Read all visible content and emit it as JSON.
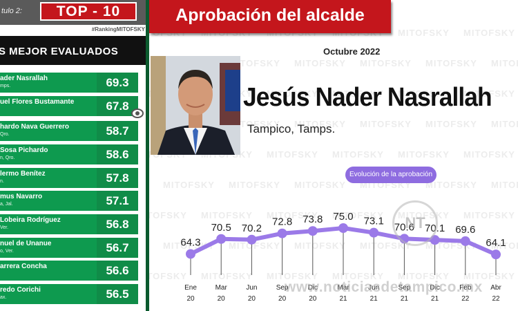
{
  "left_panel": {
    "caption": "tulo 2:",
    "top_title": "TOP - 10",
    "hashtag": "#RankingMITOFSKY",
    "subtitle": "S MEJOR EVALUADOS",
    "rankings": [
      {
        "name": "ader Nasrallah",
        "place": "mps.",
        "score": "69.3"
      },
      {
        "name": "uel Flores Bustamante",
        "place": "",
        "score": "67.8"
      },
      {
        "name": "hardo Nava Guerrero",
        "place": "Qro.",
        "score": "58.7"
      },
      {
        "name": "Sosa Pichardo",
        "place": "n, Qro.",
        "score": "58.6"
      },
      {
        "name": "lermo Benítez",
        "place": "n.",
        "score": "57.8"
      },
      {
        "name": "mus Navarro",
        "place": "a, Jal.",
        "score": "57.1"
      },
      {
        "name": "Lobeira Rodríguez",
        "place": "Ver.",
        "score": "56.8"
      },
      {
        "name": "nuel de Unanue",
        "place": "o, Ver.",
        "score": "56.7"
      },
      {
        "name": "arrera Concha",
        "place": "",
        "score": "56.6"
      },
      {
        "name": "redo Corichi",
        "place": "ax.",
        "score": "56.5"
      }
    ]
  },
  "right_panel": {
    "banner_title": "Aprobación del alcalde",
    "date": "Octubre 2022",
    "person_name": "Jesús Nader Nasrallah",
    "city": "Tampico, Tamps.",
    "evolution_label": "Evolución de la aprobación",
    "watermark_site": "www.noticiasdetampico.mx",
    "watermark_logo": "NT",
    "watermark_text": "MITOFSKY"
  },
  "colors": {
    "red_banner": "#c4161c",
    "green_row": "#0e9a4f",
    "purple_line": "#9b7ae8",
    "evolution_pill": "#8e6ce0"
  },
  "chart_data": {
    "type": "line",
    "title": "Evolución de la aprobación",
    "x": [
      [
        "Ene",
        "20"
      ],
      [
        "Mar",
        "20"
      ],
      [
        "Jun",
        "20"
      ],
      [
        "Sep",
        "20"
      ],
      [
        "Dic",
        "20"
      ],
      [
        "Mar",
        "21"
      ],
      [
        "Jun",
        "21"
      ],
      [
        "Sep",
        "21"
      ],
      [
        "Dic",
        "21"
      ],
      [
        "Feb",
        "22"
      ],
      [
        "Abr",
        "22"
      ]
    ],
    "values": [
      64.3,
      70.5,
      70.2,
      72.8,
      73.8,
      75.0,
      73.1,
      70.6,
      70.1,
      69.6,
      64.1
    ],
    "value_labels": [
      "64.3",
      "70.5",
      "70.2",
      "72.8",
      "73.8",
      "75.0",
      "73.1",
      "70.6",
      "70.1",
      "69.6",
      "64.1"
    ],
    "xlabel": "",
    "ylabel": "",
    "ylim": [
      55,
      85
    ],
    "grid": false
  }
}
